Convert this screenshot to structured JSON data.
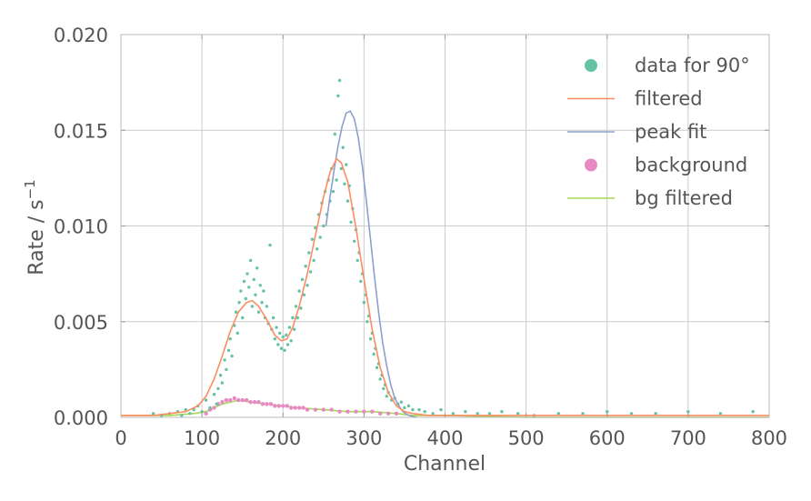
{
  "chart_data": {
    "type": "scatter",
    "xlabel": "Channel",
    "ylabel": "Rate / s",
    "ylabel_superscript": "−1",
    "xlim": [
      0,
      800
    ],
    "ylim": [
      0,
      0.02
    ],
    "x_ticks": [
      0,
      100,
      200,
      300,
      400,
      500,
      600,
      700,
      800
    ],
    "y_ticks": [
      0.0,
      0.005,
      0.01,
      0.015,
      0.02
    ],
    "x_tick_labels": [
      "0",
      "100",
      "200",
      "300",
      "400",
      "500",
      "600",
      "700",
      "800"
    ],
    "y_tick_labels": [
      "0.000",
      "0.005",
      "0.010",
      "0.015",
      "0.020"
    ],
    "grid": true,
    "legend_position": "top-right",
    "legend": [
      {
        "label": "data for 90°",
        "kind": "marker",
        "color": "#66c2a5"
      },
      {
        "label": "filtered",
        "kind": "line",
        "color": "#fc8d62"
      },
      {
        "label": "peak fit",
        "kind": "line",
        "color": "#8da0cb"
      },
      {
        "label": "background",
        "kind": "marker",
        "color": "#e78ac3"
      },
      {
        "label": "bg filtered",
        "kind": "line",
        "color": "#a6d854"
      }
    ],
    "series": [
      {
        "name": "data for 90°",
        "kind": "scatter",
        "color": "#66c2a5",
        "points": [
          [
            40,
            0.0002
          ],
          [
            50,
            0.0001
          ],
          [
            60,
            0.0002
          ],
          [
            70,
            0.0003
          ],
          [
            75,
            0.0001
          ],
          [
            80,
            0.0004
          ],
          [
            85,
            0.0002
          ],
          [
            90,
            0.0004
          ],
          [
            95,
            0.0006
          ],
          [
            100,
            0.0003
          ],
          [
            105,
            0.0009
          ],
          [
            110,
            0.0005
          ],
          [
            115,
            0.0012
          ],
          [
            118,
            0.0007
          ],
          [
            120,
            0.0015
          ],
          [
            123,
            0.0022
          ],
          [
            125,
            0.0018
          ],
          [
            128,
            0.003
          ],
          [
            130,
            0.0025
          ],
          [
            133,
            0.0035
          ],
          [
            135,
            0.0041
          ],
          [
            137,
            0.0032
          ],
          [
            140,
            0.0048
          ],
          [
            142,
            0.0055
          ],
          [
            144,
            0.0044
          ],
          [
            146,
            0.006
          ],
          [
            148,
            0.0066
          ],
          [
            150,
            0.0052
          ],
          [
            152,
            0.0071
          ],
          [
            154,
            0.0062
          ],
          [
            156,
            0.0075
          ],
          [
            158,
            0.0068
          ],
          [
            160,
            0.0082
          ],
          [
            162,
            0.0058
          ],
          [
            164,
            0.0072
          ],
          [
            166,
            0.0064
          ],
          [
            168,
            0.0078
          ],
          [
            170,
            0.0055
          ],
          [
            172,
            0.0069
          ],
          [
            174,
            0.006
          ],
          [
            176,
            0.0066
          ],
          [
            178,
            0.0052
          ],
          [
            180,
            0.0058
          ],
          [
            182,
            0.0049
          ],
          [
            184,
            0.009
          ],
          [
            186,
            0.0046
          ],
          [
            188,
            0.0052
          ],
          [
            190,
            0.0041
          ],
          [
            192,
            0.0047
          ],
          [
            194,
            0.0038
          ],
          [
            196,
            0.0044
          ],
          [
            198,
            0.0036
          ],
          [
            200,
            0.0042
          ],
          [
            202,
            0.0035
          ],
          [
            204,
            0.0043
          ],
          [
            206,
            0.0038
          ],
          [
            208,
            0.0047
          ],
          [
            210,
            0.004
          ],
          [
            212,
            0.0052
          ],
          [
            214,
            0.0046
          ],
          [
            216,
            0.0058
          ],
          [
            218,
            0.0052
          ],
          [
            220,
            0.0066
          ],
          [
            222,
            0.0057
          ],
          [
            224,
            0.0072
          ],
          [
            226,
            0.0064
          ],
          [
            228,
            0.0079
          ],
          [
            230,
            0.0069
          ],
          [
            232,
            0.0086
          ],
          [
            234,
            0.0076
          ],
          [
            236,
            0.0093
          ],
          [
            238,
            0.0082
          ],
          [
            240,
            0.0099
          ],
          [
            242,
            0.0088
          ],
          [
            244,
            0.0106
          ],
          [
            246,
            0.0094
          ],
          [
            248,
            0.0112
          ],
          [
            250,
            0.01
          ],
          [
            252,
            0.0118
          ],
          [
            254,
            0.0106
          ],
          [
            256,
            0.0124
          ],
          [
            258,
            0.0113
          ],
          [
            260,
            0.013
          ],
          [
            262,
            0.0118
          ],
          [
            264,
            0.0148
          ],
          [
            266,
            0.0124
          ],
          [
            268,
            0.0168
          ],
          [
            270,
            0.0176
          ],
          [
            272,
            0.013
          ],
          [
            274,
            0.0141
          ],
          [
            276,
            0.0122
          ],
          [
            278,
            0.0132
          ],
          [
            280,
            0.0113
          ],
          [
            282,
            0.0121
          ],
          [
            284,
            0.0102
          ],
          [
            286,
            0.0109
          ],
          [
            288,
            0.0092
          ],
          [
            290,
            0.0098
          ],
          [
            292,
            0.0082
          ],
          [
            294,
            0.0086
          ],
          [
            296,
            0.0071
          ],
          [
            298,
            0.0075
          ],
          [
            300,
            0.006
          ],
          [
            302,
            0.0064
          ],
          [
            304,
            0.005
          ],
          [
            306,
            0.0053
          ],
          [
            308,
            0.0041
          ],
          [
            310,
            0.0044
          ],
          [
            312,
            0.0033
          ],
          [
            314,
            0.0036
          ],
          [
            316,
            0.0026
          ],
          [
            318,
            0.0028
          ],
          [
            320,
            0.002
          ],
          [
            322,
            0.0022
          ],
          [
            324,
            0.0015
          ],
          [
            326,
            0.0017
          ],
          [
            328,
            0.0011
          ],
          [
            330,
            0.0013
          ],
          [
            334,
            0.0009
          ],
          [
            338,
            0.001
          ],
          [
            342,
            0.0007
          ],
          [
            346,
            0.0008
          ],
          [
            350,
            0.0005
          ],
          [
            355,
            0.0006
          ],
          [
            360,
            0.0004
          ],
          [
            368,
            0.0004
          ],
          [
            375,
            0.0003
          ],
          [
            385,
            0.0002
          ],
          [
            395,
            0.0004
          ],
          [
            410,
            0.0002
          ],
          [
            425,
            0.0003
          ],
          [
            440,
            0.0002
          ],
          [
            455,
            0.0002
          ],
          [
            470,
            0.0003
          ],
          [
            490,
            0.0002
          ],
          [
            510,
            0.0001
          ],
          [
            540,
            0.0002
          ],
          [
            570,
            0.0002
          ],
          [
            600,
            0.0003
          ],
          [
            630,
            0.0002
          ],
          [
            660,
            0.0002
          ],
          [
            700,
            0.0003
          ],
          [
            740,
            0.0002
          ],
          [
            780,
            0.0003
          ]
        ]
      },
      {
        "name": "filtered",
        "kind": "line",
        "color": "#fc8d62",
        "points": [
          [
            0,
            0.0001
          ],
          [
            40,
            0.0001
          ],
          [
            60,
            0.0002
          ],
          [
            80,
            0.0003
          ],
          [
            95,
            0.0006
          ],
          [
            105,
            0.0011
          ],
          [
            115,
            0.002
          ],
          [
            125,
            0.0032
          ],
          [
            135,
            0.0045
          ],
          [
            145,
            0.0055
          ],
          [
            155,
            0.006
          ],
          [
            162,
            0.0061
          ],
          [
            170,
            0.0058
          ],
          [
            180,
            0.0051
          ],
          [
            190,
            0.0043
          ],
          [
            198,
            0.004
          ],
          [
            205,
            0.0041
          ],
          [
            212,
            0.0047
          ],
          [
            220,
            0.0058
          ],
          [
            230,
            0.0075
          ],
          [
            240,
            0.0095
          ],
          [
            250,
            0.0115
          ],
          [
            258,
            0.0128
          ],
          [
            266,
            0.0135
          ],
          [
            272,
            0.0133
          ],
          [
            280,
            0.0123
          ],
          [
            290,
            0.0099
          ],
          [
            300,
            0.0072
          ],
          [
            310,
            0.0046
          ],
          [
            320,
            0.0026
          ],
          [
            330,
            0.0013
          ],
          [
            340,
            0.0006
          ],
          [
            350,
            0.0003
          ],
          [
            360,
            0.0002
          ],
          [
            380,
            0.0001
          ],
          [
            420,
            0.0001
          ],
          [
            500,
            0.0001
          ],
          [
            600,
            0.0001
          ],
          [
            700,
            0.0001
          ],
          [
            800,
            0.0001
          ]
        ]
      },
      {
        "name": "peak fit",
        "kind": "line",
        "color": "#8da0cb",
        "points": [
          [
            253,
            0.01
          ],
          [
            258,
            0.0115
          ],
          [
            263,
            0.0129
          ],
          [
            268,
            0.0142
          ],
          [
            273,
            0.0152
          ],
          [
            278,
            0.0159
          ],
          [
            283,
            0.016
          ],
          [
            288,
            0.0156
          ],
          [
            293,
            0.0146
          ],
          [
            298,
            0.0131
          ],
          [
            303,
            0.0113
          ],
          [
            308,
            0.0093
          ],
          [
            313,
            0.0073
          ],
          [
            318,
            0.0055
          ],
          [
            323,
            0.0039
          ],
          [
            328,
            0.0027
          ],
          [
            333,
            0.0017
          ],
          [
            338,
            0.001
          ],
          [
            343,
            0.0006
          ],
          [
            348,
            0.0003
          ],
          [
            355,
            0.0001
          ],
          [
            365,
            0.0
          ]
        ]
      },
      {
        "name": "background",
        "kind": "scatter",
        "color": "#e78ac3",
        "points": [
          [
            105,
            0.0002
          ],
          [
            110,
            0.0004
          ],
          [
            115,
            0.0005
          ],
          [
            120,
            0.0007
          ],
          [
            125,
            0.0008
          ],
          [
            130,
            0.0009
          ],
          [
            135,
            0.0009
          ],
          [
            140,
            0.001
          ],
          [
            145,
            0.0009
          ],
          [
            150,
            0.0009
          ],
          [
            155,
            0.0009
          ],
          [
            160,
            0.0008
          ],
          [
            165,
            0.0008
          ],
          [
            170,
            0.0008
          ],
          [
            175,
            0.0007
          ],
          [
            180,
            0.0007
          ],
          [
            185,
            0.0007
          ],
          [
            190,
            0.0006
          ],
          [
            195,
            0.0006
          ],
          [
            200,
            0.0006
          ],
          [
            205,
            0.0006
          ],
          [
            210,
            0.0005
          ],
          [
            215,
            0.0005
          ],
          [
            220,
            0.0005
          ],
          [
            225,
            0.0005
          ],
          [
            230,
            0.0004
          ],
          [
            240,
            0.0004
          ],
          [
            250,
            0.0004
          ],
          [
            260,
            0.0004
          ],
          [
            270,
            0.0003
          ],
          [
            280,
            0.0003
          ],
          [
            290,
            0.0003
          ],
          [
            300,
            0.0003
          ],
          [
            310,
            0.0003
          ],
          [
            320,
            0.0002
          ],
          [
            330,
            0.0002
          ],
          [
            340,
            0.0002
          ]
        ]
      },
      {
        "name": "bg filtered",
        "kind": "line",
        "color": "#a6d854",
        "points": [
          [
            0,
            0.0001
          ],
          [
            60,
            0.0001
          ],
          [
            90,
            0.0002
          ],
          [
            105,
            0.0003
          ],
          [
            115,
            0.0005
          ],
          [
            125,
            0.0007
          ],
          [
            135,
            0.0008
          ],
          [
            145,
            0.0009
          ],
          [
            160,
            0.0008
          ],
          [
            180,
            0.0007
          ],
          [
            200,
            0.0006
          ],
          [
            220,
            0.0005
          ],
          [
            250,
            0.0004
          ],
          [
            280,
            0.0003
          ],
          [
            310,
            0.0003
          ],
          [
            340,
            0.0002
          ],
          [
            360,
            0.0001
          ],
          [
            400,
            0.0001
          ],
          [
            500,
            0.0
          ],
          [
            600,
            0.0
          ],
          [
            700,
            0.0
          ],
          [
            800,
            0.0
          ]
        ]
      }
    ]
  }
}
